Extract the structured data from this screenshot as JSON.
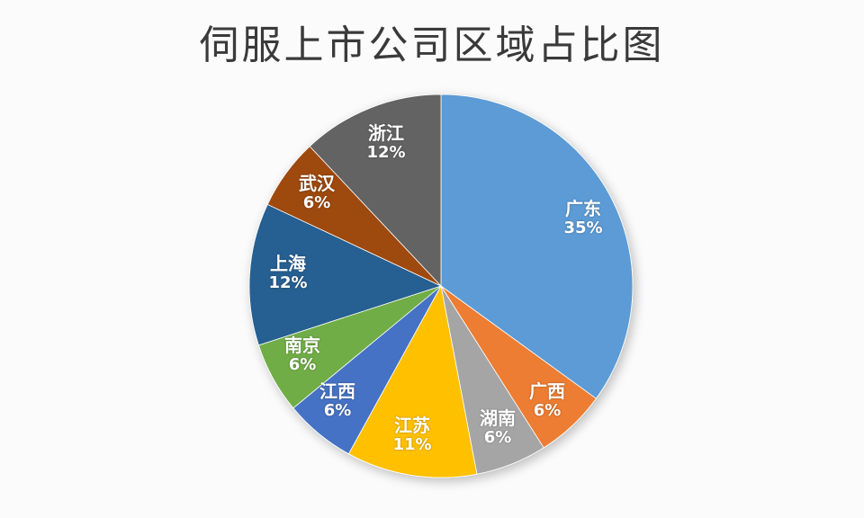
{
  "title": "伺服上市公司区域占比图",
  "chart_data": {
    "type": "pie",
    "title": "伺服上市公司区域占比图",
    "start_angle_deg": 0,
    "direction": "clockwise",
    "categories": [
      "广东",
      "广西",
      "湖南",
      "江苏",
      "江西",
      "南京",
      "上海",
      "武汉",
      "浙江"
    ],
    "values": [
      35,
      6,
      6,
      11,
      6,
      6,
      12,
      6,
      12
    ],
    "labels": [
      "35%",
      "6%",
      "6%",
      "11%",
      "6%",
      "6%",
      "12%",
      "6%",
      "12%"
    ],
    "colors": [
      "#5b9bd5",
      "#ed7d31",
      "#a5a5a5",
      "#ffc000",
      "#4472c4",
      "#70ad47",
      "#255e91",
      "#9e480e",
      "#636363"
    ],
    "legend": "none",
    "data_labels": "category and percentage inside slices"
  },
  "slices": [
    {
      "name": "广东",
      "pct": "35%"
    },
    {
      "name": "广西",
      "pct": "6%"
    },
    {
      "name": "湖南",
      "pct": "6%"
    },
    {
      "name": "江苏",
      "pct": "11%"
    },
    {
      "name": "江西",
      "pct": "6%"
    },
    {
      "name": "南京",
      "pct": "6%"
    },
    {
      "name": "上海",
      "pct": "12%"
    },
    {
      "name": "武汉",
      "pct": "6%"
    },
    {
      "name": "浙江",
      "pct": "12%"
    }
  ]
}
